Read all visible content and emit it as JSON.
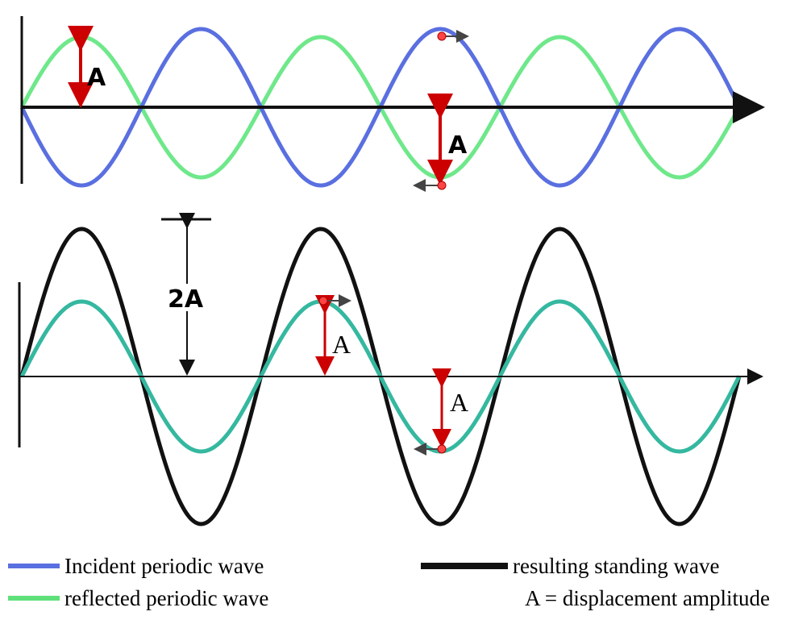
{
  "top_panel": {
    "amplitude_label_1": "A",
    "amplitude_label_2": "A"
  },
  "bottom_panel": {
    "double_amplitude_label": "2A",
    "amplitude_label_1": "A",
    "amplitude_label_2": "A"
  },
  "legend": {
    "incident": "Incident periodic wave",
    "reflected": "reflected periodic wave",
    "standing": "resulting standing wave",
    "amplitude": "A = displacement amplitude"
  }
}
